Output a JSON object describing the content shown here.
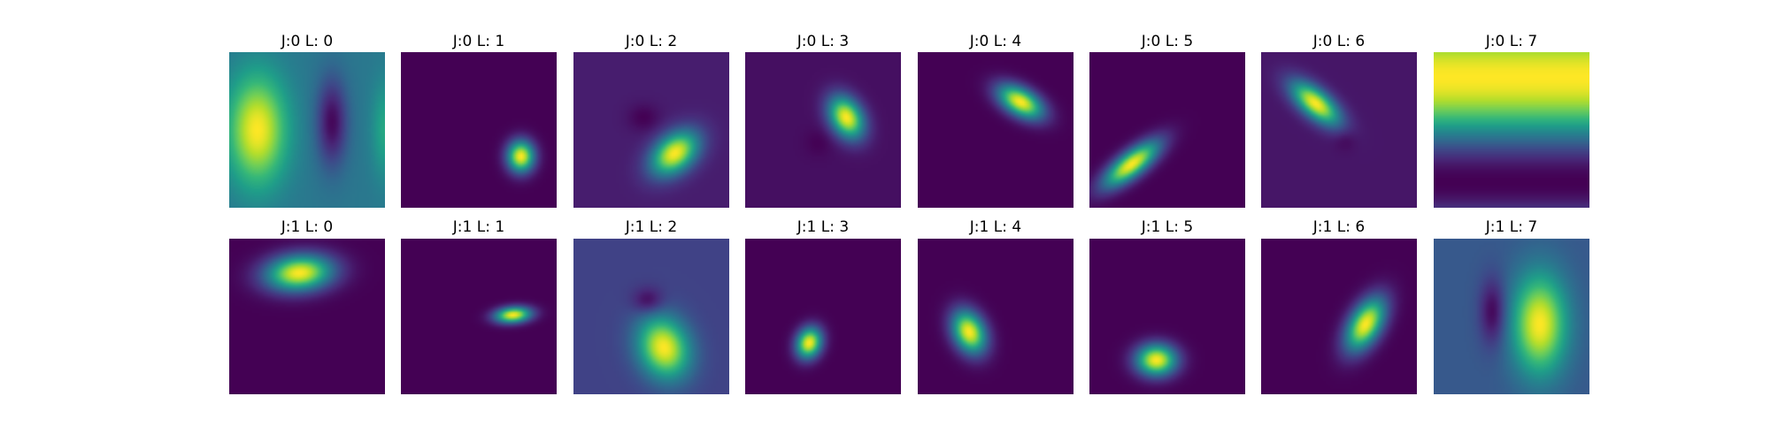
{
  "colormap": {
    "name": "viridis",
    "stops": [
      "#440154",
      "#482878",
      "#3e4989",
      "#31688e",
      "#26828e",
      "#1f9e89",
      "#35b779",
      "#6ece58",
      "#b5de2b",
      "#fde725"
    ]
  },
  "chart_data": {
    "type": "heatmap",
    "layout": "grid 2 rows x 8 columns of image panels",
    "colormap": "viridis",
    "panels": [
      {
        "title": "J:0 L: 0",
        "background": 0.4,
        "blobs": [
          {
            "cx": 0.18,
            "cy": 0.5,
            "sx": 0.13,
            "sy": 0.24,
            "angle": 0,
            "amp": 0.6
          },
          {
            "cx": 0.66,
            "cy": 0.45,
            "sx": 0.07,
            "sy": 0.2,
            "angle": 0,
            "amp": -0.38
          },
          {
            "cx": 1.0,
            "cy": 0.5,
            "sx": 0.06,
            "sy": 0.22,
            "angle": 0,
            "amp": 0.2
          }
        ]
      },
      {
        "title": "J:0 L: 1",
        "background": 0.0,
        "blobs": [
          {
            "cx": 0.77,
            "cy": 0.67,
            "sx": 0.06,
            "sy": 0.07,
            "angle": 0,
            "amp": 1.0
          }
        ]
      },
      {
        "title": "J:0 L: 2",
        "background": 0.08,
        "blobs": [
          {
            "cx": 0.65,
            "cy": 0.65,
            "sx": 0.12,
            "sy": 0.08,
            "angle": -40,
            "amp": 0.92
          },
          {
            "cx": 0.45,
            "cy": 0.42,
            "sx": 0.07,
            "sy": 0.06,
            "angle": 0,
            "amp": -0.08
          }
        ]
      },
      {
        "title": "J:0 L: 3",
        "background": 0.04,
        "blobs": [
          {
            "cx": 0.65,
            "cy": 0.42,
            "sx": 0.07,
            "sy": 0.1,
            "angle": -30,
            "amp": 0.96
          },
          {
            "cx": 0.47,
            "cy": 0.58,
            "sx": 0.06,
            "sy": 0.06,
            "angle": 0,
            "amp": -0.04
          }
        ]
      },
      {
        "title": "J:0 L: 4",
        "background": 0.0,
        "blobs": [
          {
            "cx": 0.66,
            "cy": 0.32,
            "sx": 0.11,
            "sy": 0.06,
            "angle": 30,
            "amp": 1.0
          }
        ]
      },
      {
        "title": "J:0 L: 5",
        "background": 0.0,
        "blobs": [
          {
            "cx": 0.27,
            "cy": 0.72,
            "sx": 0.15,
            "sy": 0.055,
            "angle": -38,
            "amp": 1.0
          }
        ]
      },
      {
        "title": "J:0 L: 6",
        "background": 0.06,
        "blobs": [
          {
            "cx": 0.35,
            "cy": 0.33,
            "sx": 0.13,
            "sy": 0.06,
            "angle": 40,
            "amp": 0.94
          },
          {
            "cx": 0.54,
            "cy": 0.56,
            "sx": 0.05,
            "sy": 0.05,
            "angle": 0,
            "amp": -0.06
          }
        ]
      },
      {
        "title": "J:0 L: 7",
        "background": 0.5,
        "stripes": {
          "orientation": "horizontal",
          "period": 1.35,
          "phase": 0.16,
          "amp": 0.5
        }
      },
      {
        "title": "J:1 L: 0",
        "background": 0.0,
        "blobs": [
          {
            "cx": 0.45,
            "cy": 0.22,
            "sx": 0.15,
            "sy": 0.08,
            "angle": -5,
            "amp": 1.0
          }
        ]
      },
      {
        "title": "J:1 L: 1",
        "background": 0.0,
        "blobs": [
          {
            "cx": 0.72,
            "cy": 0.49,
            "sx": 0.08,
            "sy": 0.035,
            "angle": -5,
            "amp": 1.0
          }
        ]
      },
      {
        "title": "J:1 L: 2",
        "background": 0.2,
        "blobs": [
          {
            "cx": 0.58,
            "cy": 0.7,
            "sx": 0.11,
            "sy": 0.14,
            "angle": -20,
            "amp": 0.8
          },
          {
            "cx": 0.48,
            "cy": 0.4,
            "sx": 0.07,
            "sy": 0.06,
            "angle": 0,
            "amp": -0.2
          }
        ]
      },
      {
        "title": "J:1 L: 3",
        "background": 0.0,
        "blobs": [
          {
            "cx": 0.41,
            "cy": 0.67,
            "sx": 0.055,
            "sy": 0.07,
            "angle": 20,
            "amp": 1.0
          }
        ]
      },
      {
        "title": "J:1 L: 4",
        "background": 0.0,
        "blobs": [
          {
            "cx": 0.33,
            "cy": 0.6,
            "sx": 0.07,
            "sy": 0.1,
            "angle": -25,
            "amp": 1.0
          }
        ]
      },
      {
        "title": "J:1 L: 5",
        "background": 0.0,
        "blobs": [
          {
            "cx": 0.43,
            "cy": 0.78,
            "sx": 0.09,
            "sy": 0.07,
            "angle": 0,
            "amp": 1.0
          }
        ]
      },
      {
        "title": "J:1 L: 6",
        "background": 0.0,
        "blobs": [
          {
            "cx": 0.67,
            "cy": 0.55,
            "sx": 0.07,
            "sy": 0.13,
            "angle": 30,
            "amp": 1.0
          }
        ]
      },
      {
        "title": "J:1 L: 7",
        "background": 0.28,
        "blobs": [
          {
            "cx": 0.68,
            "cy": 0.55,
            "sx": 0.12,
            "sy": 0.22,
            "angle": 0,
            "amp": 0.72
          },
          {
            "cx": 0.38,
            "cy": 0.47,
            "sx": 0.06,
            "sy": 0.15,
            "angle": 0,
            "amp": -0.28
          }
        ]
      }
    ]
  }
}
